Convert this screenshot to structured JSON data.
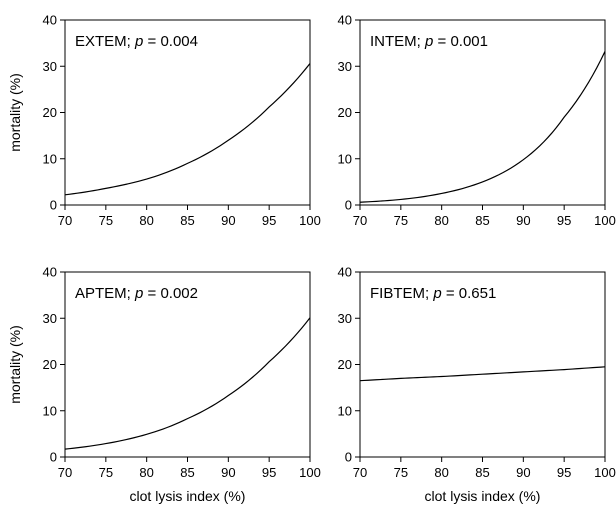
{
  "chart_data": [
    {
      "type": "line",
      "panel_label": "EXTEM; ",
      "p_symbol": "p",
      "p_value_text": " = 0.004",
      "xlabel": "",
      "ylabel": "mortality (%)",
      "xlim": [
        70,
        100
      ],
      "ylim": [
        0,
        40
      ],
      "xticks": [
        70,
        75,
        80,
        85,
        90,
        95,
        100
      ],
      "yticks": [
        0,
        10,
        20,
        30,
        40
      ],
      "series": [
        {
          "x": [
            70,
            75,
            80,
            85,
            90,
            95,
            100
          ],
          "y": [
            2.2,
            3.6,
            5.6,
            9.0,
            14.0,
            21.2,
            30.6
          ]
        }
      ]
    },
    {
      "type": "line",
      "panel_label": "INTEM; ",
      "p_symbol": "p",
      "p_value_text": " = 0.001",
      "xlabel": "",
      "ylabel": "",
      "xlim": [
        70,
        100
      ],
      "ylim": [
        0,
        40
      ],
      "xticks": [
        70,
        75,
        80,
        85,
        90,
        95,
        100
      ],
      "yticks": [
        0,
        10,
        20,
        30,
        40
      ],
      "series": [
        {
          "x": [
            70,
            75,
            80,
            85,
            90,
            95,
            100
          ],
          "y": [
            0.6,
            1.2,
            2.5,
            5.0,
            9.8,
            19.0,
            33.2
          ]
        }
      ]
    },
    {
      "type": "line",
      "panel_label": "APTEM; ",
      "p_symbol": "p",
      "p_value_text": " = 0.002",
      "xlabel": "clot lysis index (%)",
      "ylabel": "mortality (%)",
      "xlim": [
        70,
        100
      ],
      "ylim": [
        0,
        40
      ],
      "xticks": [
        70,
        75,
        80,
        85,
        90,
        95,
        100
      ],
      "yticks": [
        0,
        10,
        20,
        30,
        40
      ],
      "series": [
        {
          "x": [
            70,
            75,
            80,
            85,
            90,
            95,
            100
          ],
          "y": [
            1.7,
            2.9,
            4.9,
            8.3,
            13.3,
            20.6,
            30.1
          ]
        }
      ]
    },
    {
      "type": "line",
      "panel_label": "FIBTEM; ",
      "p_symbol": "p",
      "p_value_text": " = 0.651",
      "xlabel": "clot lysis index (%)",
      "ylabel": "",
      "xlim": [
        70,
        100
      ],
      "ylim": [
        0,
        40
      ],
      "xticks": [
        70,
        75,
        80,
        85,
        90,
        95,
        100
      ],
      "yticks": [
        0,
        10,
        20,
        30,
        40
      ],
      "series": [
        {
          "x": [
            70,
            75,
            80,
            85,
            90,
            95,
            100
          ],
          "y": [
            16.5,
            17.0,
            17.4,
            17.9,
            18.4,
            18.9,
            19.5
          ]
        }
      ]
    }
  ]
}
